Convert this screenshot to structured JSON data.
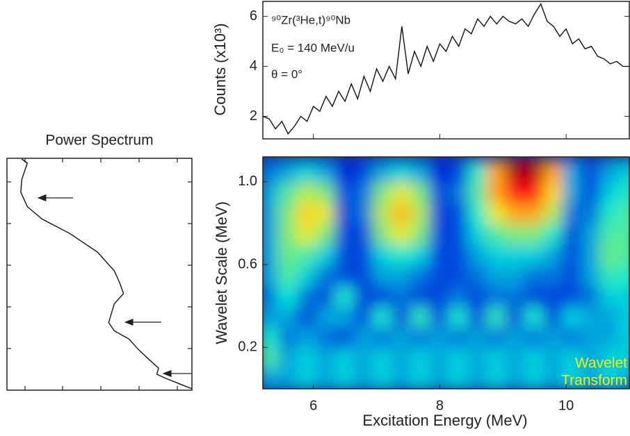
{
  "chart_data": [
    {
      "type": "line",
      "ylabel": "Counts (x10³)",
      "color": "#111111",
      "annotations": [
        "⁹⁰Zr(³He,t)⁹⁰Nb",
        "E₀ = 140 MeV/u",
        "θ = 0°"
      ],
      "x": [
        5.2,
        5.3,
        5.4,
        5.5,
        5.6,
        5.7,
        5.8,
        5.9,
        6.0,
        6.1,
        6.2,
        6.3,
        6.4,
        6.5,
        6.6,
        6.7,
        6.8,
        6.9,
        7.0,
        7.1,
        7.2,
        7.3,
        7.4,
        7.5,
        7.6,
        7.7,
        7.8,
        7.9,
        8.0,
        8.1,
        8.2,
        8.3,
        8.4,
        8.5,
        8.6,
        8.7,
        8.8,
        8.9,
        9.0,
        9.1,
        9.2,
        9.3,
        9.4,
        9.5,
        9.6,
        9.7,
        9.8,
        9.9,
        10.0,
        10.1,
        10.2,
        10.3,
        10.4,
        10.5,
        10.6,
        10.7,
        10.8,
        10.9,
        11.0
      ],
      "values": [
        2.0,
        1.9,
        1.5,
        1.8,
        1.3,
        1.6,
        2.0,
        1.8,
        2.4,
        2.2,
        2.8,
        2.4,
        3.0,
        2.6,
        3.3,
        2.7,
        3.6,
        3.0,
        3.9,
        3.4,
        4.0,
        3.5,
        5.6,
        3.7,
        4.6,
        4.0,
        4.8,
        4.2,
        4.9,
        4.6,
        5.2,
        4.8,
        5.5,
        5.3,
        5.9,
        5.6,
        6.0,
        5.7,
        6.0,
        5.8,
        5.7,
        5.9,
        5.6,
        6.1,
        6.5,
        5.8,
        5.6,
        5.2,
        5.5,
        4.9,
        5.1,
        4.7,
        4.8,
        4.4,
        4.3,
        4.1,
        4.2,
        4.0,
        4.0
      ],
      "xlim": [
        5.2,
        11.0
      ],
      "ylim": [
        1.1,
        6.6
      ],
      "yticks": [
        2,
        4,
        6
      ]
    },
    {
      "type": "heatmap",
      "xlabel": "Excitation Energy (MeV)",
      "ylabel": "Wavelet Scale (MeV)",
      "annotation": [
        "Wavelet",
        "Transform"
      ],
      "annotation_color": "#ffee00",
      "colormap": "jet",
      "xlim": [
        5.2,
        11.0
      ],
      "ylim": [
        0,
        1.12
      ],
      "zlim": [
        0,
        1
      ],
      "xticks": [
        6,
        8,
        10
      ],
      "yticks": [
        0.2,
        0.6,
        {
          "value": 1,
          "label": "1.0"
        }
      ],
      "x": [
        5.3,
        5.6,
        5.9,
        6.2,
        6.5,
        6.8,
        7.1,
        7.4,
        7.7,
        8.0,
        8.3,
        8.6,
        8.9,
        9.2,
        9.5,
        9.8,
        10.1,
        10.4,
        10.7,
        11.0
      ],
      "y": [
        0.05,
        0.15,
        0.25,
        0.35,
        0.45,
        0.55,
        0.65,
        0.75,
        0.85,
        0.95,
        1.05
      ],
      "z": [
        [
          0.3,
          0.3,
          0.35,
          0.3,
          0.35,
          0.3,
          0.35,
          0.3,
          0.35,
          0.3,
          0.35,
          0.3,
          0.35,
          0.3,
          0.35,
          0.3,
          0.35,
          0.3,
          0.35,
          0.3
        ],
        [
          0.45,
          0.3,
          0.35,
          0.3,
          0.35,
          0.3,
          0.35,
          0.3,
          0.35,
          0.3,
          0.35,
          0.3,
          0.35,
          0.3,
          0.35,
          0.3,
          0.35,
          0.3,
          0.35,
          0.35
        ],
        [
          0.4,
          0.25,
          0.3,
          0.25,
          0.2,
          0.3,
          0.25,
          0.3,
          0.25,
          0.3,
          0.25,
          0.3,
          0.25,
          0.3,
          0.25,
          0.3,
          0.25,
          0.3,
          0.3,
          0.35
        ],
        [
          0.3,
          0.3,
          0.2,
          0.3,
          0.3,
          0.2,
          0.4,
          0.2,
          0.42,
          0.2,
          0.4,
          0.2,
          0.42,
          0.2,
          0.4,
          0.2,
          0.35,
          0.3,
          0.3,
          0.35
        ],
        [
          0.25,
          0.38,
          0.25,
          0.2,
          0.4,
          0.2,
          0.2,
          0.25,
          0.2,
          0.2,
          0.25,
          0.2,
          0.25,
          0.25,
          0.2,
          0.2,
          0.2,
          0.25,
          0.35,
          0.35
        ],
        [
          0.3,
          0.45,
          0.35,
          0.25,
          0.2,
          0.2,
          0.3,
          0.3,
          0.25,
          0.2,
          0.2,
          0.25,
          0.3,
          0.3,
          0.25,
          0.25,
          0.2,
          0.3,
          0.42,
          0.4
        ],
        [
          0.3,
          0.48,
          0.45,
          0.35,
          0.2,
          0.2,
          0.35,
          0.4,
          0.35,
          0.2,
          0.2,
          0.3,
          0.35,
          0.35,
          0.35,
          0.3,
          0.2,
          0.3,
          0.48,
          0.45
        ],
        [
          0.3,
          0.5,
          0.6,
          0.5,
          0.2,
          0.2,
          0.5,
          0.6,
          0.5,
          0.2,
          0.2,
          0.35,
          0.45,
          0.5,
          0.5,
          0.4,
          0.2,
          0.3,
          0.45,
          0.45
        ],
        [
          0.3,
          0.5,
          0.65,
          0.6,
          0.2,
          0.25,
          0.55,
          0.68,
          0.55,
          0.2,
          0.2,
          0.4,
          0.6,
          0.7,
          0.7,
          0.55,
          0.25,
          0.25,
          0.4,
          0.45
        ],
        [
          0.3,
          0.45,
          0.55,
          0.5,
          0.2,
          0.25,
          0.5,
          0.6,
          0.5,
          0.2,
          0.25,
          0.45,
          0.7,
          0.85,
          0.85,
          0.65,
          0.3,
          0.2,
          0.35,
          0.4
        ],
        [
          0.25,
          0.3,
          0.35,
          0.3,
          0.15,
          0.2,
          0.3,
          0.35,
          0.3,
          0.15,
          0.2,
          0.4,
          0.7,
          0.95,
          0.95,
          0.7,
          0.3,
          0.2,
          0.3,
          0.35
        ]
      ]
    },
    {
      "type": "power",
      "title": "Power Spectrum",
      "color": "#111111",
      "xlim": [
        0,
        1
      ],
      "ylim": [
        0,
        1.12
      ],
      "values": [
        0.08,
        0.11,
        0.08,
        0.075,
        0.11,
        0.19,
        0.34,
        0.49,
        0.58,
        0.61,
        0.63,
        0.58,
        0.55,
        0.58,
        0.66,
        0.71,
        0.77,
        0.82,
        0.81,
        0.86,
        1.0
      ],
      "y": [
        1.11,
        1.09,
        1.01,
        0.95,
        0.88,
        0.82,
        0.75,
        0.66,
        0.57,
        0.51,
        0.46,
        0.41,
        0.32,
        0.28,
        0.24,
        0.19,
        0.14,
        0.1,
        0.07,
        0.05,
        0.0
      ]
    }
  ]
}
